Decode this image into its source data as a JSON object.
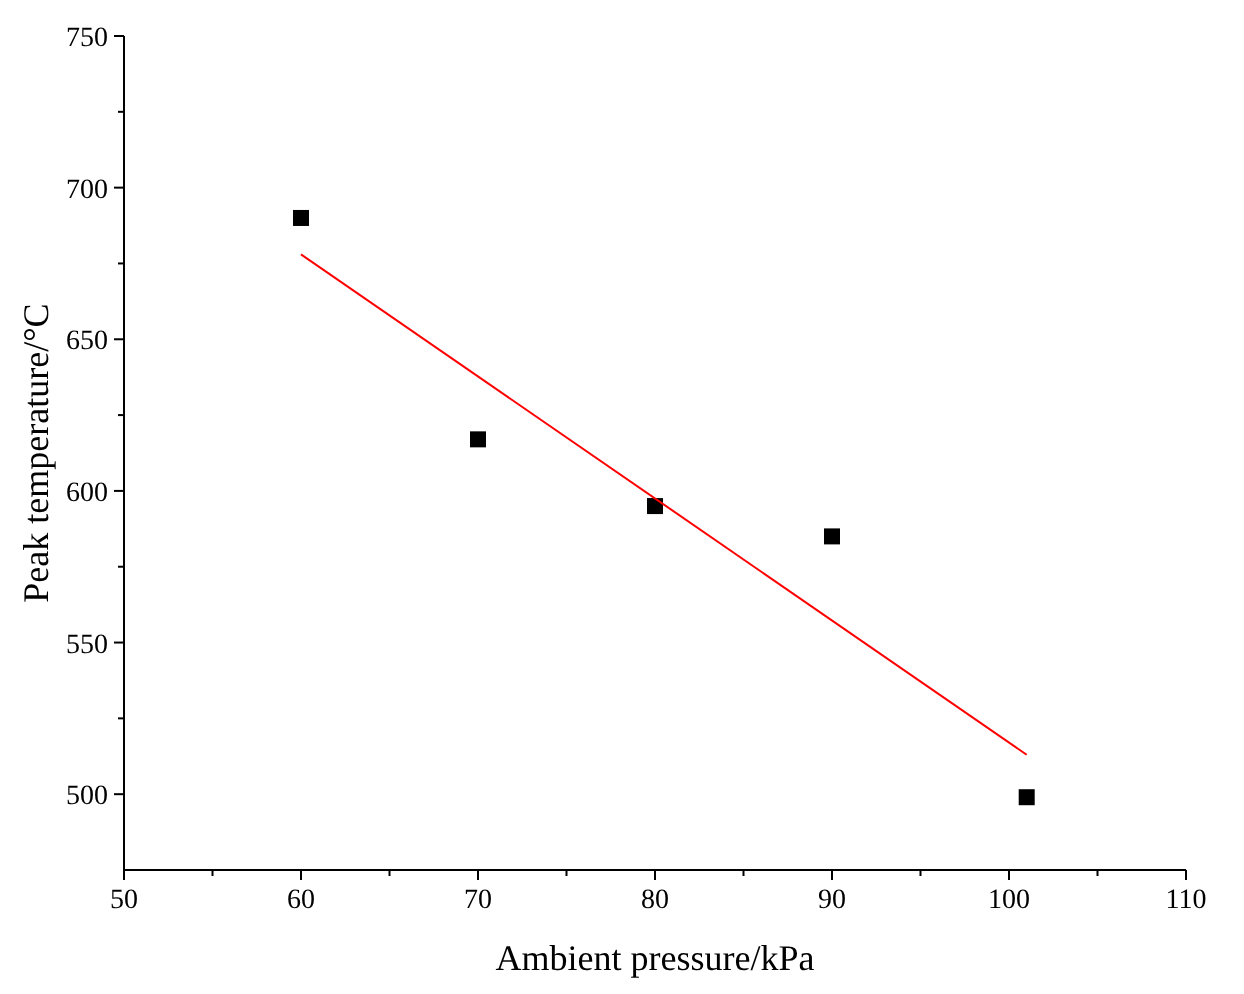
{
  "chart_data": {
    "type": "scatter",
    "xlabel": "Ambient pressure/kPa",
    "ylabel": "Peak temperature/°C",
    "xlim": [
      50,
      110
    ],
    "ylim": [
      475,
      750
    ],
    "xticks": [
      50,
      {
        "value": 55,
        "label": null
      },
      60,
      {
        "value": 65,
        "label": null
      },
      70,
      {
        "value": 75,
        "label": null
      },
      80,
      {
        "value": 85,
        "label": null
      },
      90,
      {
        "value": 95,
        "label": null
      },
      100,
      {
        "value": 105,
        "label": null
      },
      110
    ],
    "yticks": [
      500,
      {
        "value": 525,
        "label": null
      },
      550,
      {
        "value": 575,
        "label": null
      },
      600,
      {
        "value": 625,
        "label": null
      },
      650,
      {
        "value": 675,
        "label": null
      },
      700,
      {
        "value": 725,
        "label": null
      },
      750
    ],
    "grid": false,
    "marker": "square",
    "series": [
      {
        "color": "#000000",
        "x": [
          60,
          70,
          80,
          90,
          101
        ],
        "values": [
          690,
          617,
          595,
          585,
          499
        ]
      },
      {
        "type": "line",
        "color": "#ff0000",
        "x": [
          60,
          101
        ],
        "values": [
          678,
          513
        ],
        "marker": "none",
        "line_style": "solid"
      }
    ]
  }
}
